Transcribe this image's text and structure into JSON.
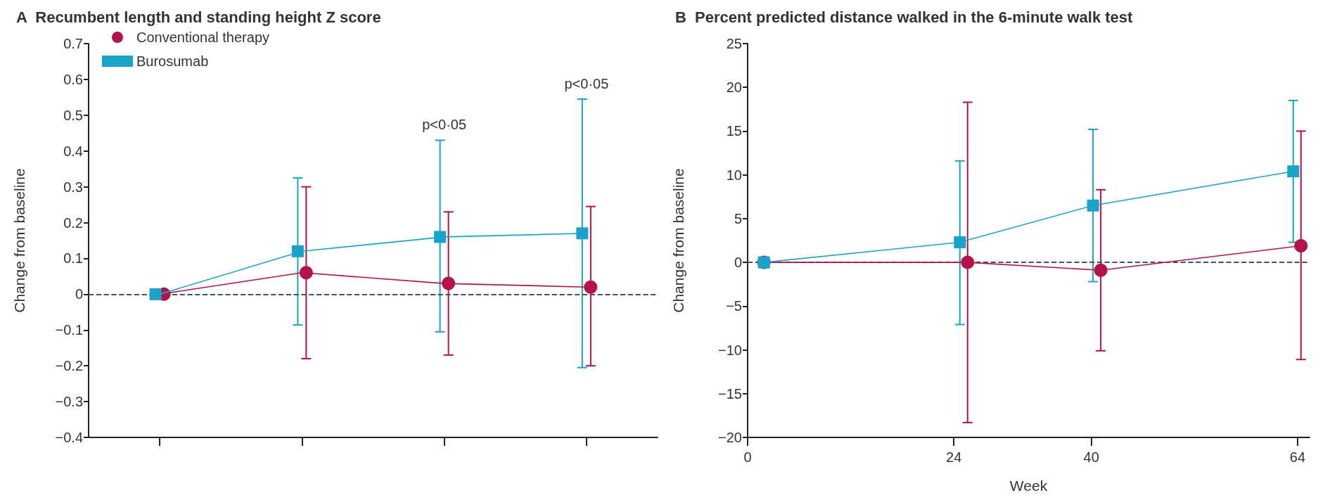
{
  "chart_data": [
    {
      "type": "line",
      "title": "A  Recumbent length and standing height Z score",
      "ylabel": "Change from baseline",
      "categories": [
        null,
        null,
        null,
        null
      ],
      "ylim": [
        -0.4,
        0.7
      ],
      "yticks": [
        {
          "value": -0.4,
          "label": "−0.4"
        },
        {
          "value": -0.3,
          "label": "−0.3"
        },
        {
          "value": -0.2,
          "label": "−0.2"
        },
        {
          "value": -0.1,
          "label": "−0.1"
        },
        0,
        0.1,
        0.2,
        0.3,
        0.4,
        0.5,
        0.6,
        0.7
      ],
      "tick_labels": "y",
      "grid": false,
      "legend": "top left",
      "series": [
        {
          "name": "Conventional therapy",
          "color": "#b5124b",
          "marker": "circle",
          "values": [
            0,
            0.06,
            0.03,
            0.02
          ],
          "errors": [
            null,
            [
              -0.18,
              0.3
            ],
            [
              -0.17,
              0.23
            ],
            [
              -0.2,
              0.245
            ]
          ]
        },
        {
          "name": "Burosumab",
          "color": "#1aa3c8",
          "marker": "square",
          "values": [
            0,
            0.12,
            0.16,
            0.17
          ],
          "errors": [
            null,
            [
              -0.086,
              0.325
            ],
            [
              -0.105,
              0.43
            ],
            [
              -0.205,
              0.545
            ]
          ]
        }
      ],
      "ref_lines": [
        {
          "axis": "y",
          "value": 0,
          "color": "#3d5662",
          "line_style": "dashed"
        }
      ],
      "annotations": [
        "p<0·05",
        "p<0·05"
      ]
    },
    {
      "type": "line",
      "title": "B  Percent predicted distance walked in the 6-minute walk test",
      "ylabel": "Change from baseline",
      "xlabel": "Week",
      "xlim": [
        0,
        65.4
      ],
      "xticks": [
        0,
        24,
        40,
        64
      ],
      "ylim": [
        -20,
        25
      ],
      "yticks": [
        {
          "value": -20,
          "label": "−20"
        },
        {
          "value": -15,
          "label": "−15"
        },
        {
          "value": -10,
          "label": "−10"
        },
        {
          "value": -5,
          "label": "−5"
        },
        0,
        5,
        10,
        15,
        20,
        25
      ],
      "grid": false,
      "legend": false,
      "series": [
        {
          "color": "#b5124b",
          "marker": "circle",
          "x": [
            1.9,
            25.6,
            41.1,
            64.4
          ],
          "values": [
            0,
            0,
            -0.9,
            1.9
          ],
          "errors": [
            null,
            [
              -18.3,
              18.3
            ],
            [
              -10.1,
              8.3
            ],
            [
              -11.1,
              15
            ]
          ]
        },
        {
          "color": "#1aa3c8",
          "marker": "square",
          "x": [
            1.9,
            24.7,
            40.2,
            63.5
          ],
          "values": [
            0,
            2.3,
            6.5,
            10.4
          ],
          "errors": [
            null,
            [
              -7.1,
              11.6
            ],
            [
              -2.2,
              15.2
            ],
            [
              2.3,
              18.5
            ]
          ]
        }
      ],
      "ref_lines": [
        {
          "axis": "y",
          "value": 0,
          "color": "#3d5662",
          "line_style": "dashed"
        }
      ]
    }
  ]
}
